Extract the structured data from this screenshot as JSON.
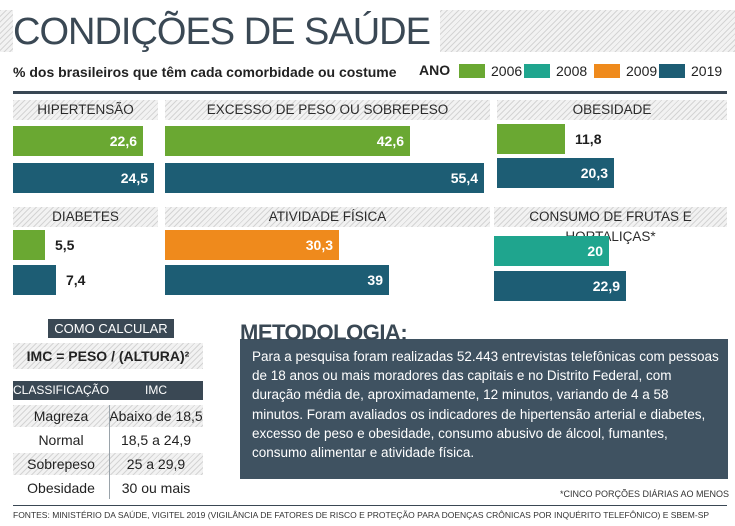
{
  "header": {
    "title": "CONDIÇÕES DE SAÚDE",
    "subtitle": "% dos brasileiros que têm cada comorbidade ou costume"
  },
  "legend": {
    "label": "ANO",
    "items": [
      {
        "year": "2006",
        "color": "#6aa832"
      },
      {
        "year": "2008",
        "color": "#1fa58e"
      },
      {
        "year": "2009",
        "color": "#ef8a1c"
      },
      {
        "year": "2019",
        "color": "#1d5d74"
      }
    ]
  },
  "chart_data": {
    "type": "bar",
    "orientation": "horizontal",
    "panels": [
      {
        "title": "HIPERTENSÃO",
        "bars": [
          {
            "year": "2006",
            "value": 22.6,
            "label": "22,6"
          },
          {
            "year": "2019",
            "value": 24.5,
            "label": "24,5"
          }
        ]
      },
      {
        "title": "EXCESSO DE PESO OU SOBREPESO",
        "bars": [
          {
            "year": "2006",
            "value": 42.6,
            "label": "42,6"
          },
          {
            "year": "2019",
            "value": 55.4,
            "label": "55,4"
          }
        ]
      },
      {
        "title": "OBESIDADE",
        "bars": [
          {
            "year": "2006",
            "value": 11.8,
            "label": "11,8"
          },
          {
            "year": "2019",
            "value": 20.3,
            "label": "20,3"
          }
        ]
      },
      {
        "title": "DIABETES",
        "bars": [
          {
            "year": "2006",
            "value": 5.5,
            "label": "5,5"
          },
          {
            "year": "2019",
            "value": 7.4,
            "label": "7,4"
          }
        ]
      },
      {
        "title": "ATIVIDADE FÍSICA",
        "bars": [
          {
            "year": "2009",
            "value": 30.3,
            "label": "30,3"
          },
          {
            "year": "2019",
            "value": 39,
            "label": "39"
          }
        ]
      },
      {
        "title": "CONSUMO DE FRUTAS E HORTALIÇAS*",
        "bars": [
          {
            "year": "2008",
            "value": 20,
            "label": "20"
          },
          {
            "year": "2019",
            "value": 22.9,
            "label": "22,9"
          }
        ]
      }
    ]
  },
  "calc": {
    "title": "COMO CALCULAR",
    "formula": "IMC = PESO / (ALTURA)²",
    "headers": [
      "CLASSIFICAÇÃO",
      "IMC"
    ],
    "rows": [
      {
        "class": "Magreza",
        "imc": "Abaixo de 18,5"
      },
      {
        "class": "Normal",
        "imc": "18,5 a 24,9"
      },
      {
        "class": "Sobrepeso",
        "imc": "25 a 29,9"
      },
      {
        "class": "Obesidade",
        "imc": "30 ou mais"
      }
    ]
  },
  "methodology": {
    "title": "METODOLOGIA:",
    "text": "Para a pesquisa foram realizadas 52.443 entrevistas telefônicas com pessoas de 18 anos ou mais moradores das capitais e no Distrito Federal, com duração média de, aproximadamente, 12 minutos, variando de 4 a 58 minutos. Foram avaliados os indicadores de hipertensão arterial e diabetes, excesso de peso e obesidade, consumo abusivo de álcool, fumantes, consumo alimentar e atividade física."
  },
  "footnote": "*CINCO PORÇÕES DIÁRIAS AO MENOS",
  "sources": "FONTES: MINISTÉRIO DA SAÚDE, VIGITEL 2019 (VIGILÂNCIA DE FATORES DE RISCO E PROTEÇÃO PARA DOENÇAS CRÔNICAS POR INQUÉRITO TELEFÔNICO) E SBEM-SP"
}
